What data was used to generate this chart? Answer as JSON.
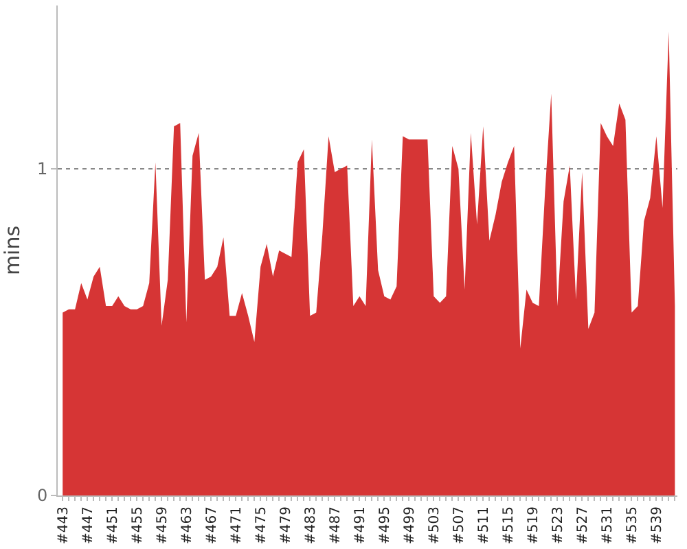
{
  "chart_data": {
    "type": "area",
    "ylabel": "mins",
    "color": "#d63535",
    "categories": [
      "#443",
      null,
      null,
      null,
      "#447",
      null,
      null,
      null,
      "#451",
      null,
      null,
      null,
      "#455",
      null,
      null,
      null,
      "#459",
      null,
      null,
      null,
      "#463",
      null,
      null,
      null,
      "#467",
      null,
      null,
      null,
      "#471",
      null,
      null,
      null,
      "#475",
      null,
      null,
      null,
      "#479",
      null,
      null,
      null,
      "#483",
      null,
      null,
      null,
      "#487",
      null,
      null,
      null,
      "#491",
      null,
      null,
      null,
      "#495",
      null,
      null,
      null,
      "#499",
      null,
      null,
      null,
      "#503",
      null,
      null,
      null,
      "#507",
      null,
      null,
      null,
      "#511",
      null,
      null,
      null,
      "#515",
      null,
      null,
      null,
      "#519",
      null,
      null,
      null,
      "#523",
      null,
      null,
      null,
      "#527",
      null,
      null,
      null,
      "#531",
      null,
      null,
      null,
      "#535",
      null,
      null,
      null,
      "#539",
      null,
      null,
      null
    ],
    "values": [
      0.56,
      0.57,
      0.57,
      0.65,
      0.6,
      0.67,
      0.7,
      0.58,
      0.58,
      0.61,
      0.58,
      0.57,
      0.57,
      0.58,
      0.65,
      1.02,
      0.52,
      0.66,
      1.13,
      1.14,
      0.53,
      1.04,
      1.11,
      0.66,
      0.67,
      0.7,
      0.79,
      0.55,
      0.55,
      0.62,
      0.55,
      0.47,
      0.7,
      0.77,
      0.67,
      0.75,
      0.74,
      0.73,
      1.02,
      1.06,
      0.55,
      0.56,
      0.8,
      1.1,
      0.99,
      1.0,
      1.01,
      0.58,
      0.61,
      0.58,
      1.09,
      0.69,
      0.61,
      0.6,
      0.64,
      1.1,
      1.09,
      1.09,
      1.09,
      1.09,
      0.61,
      0.59,
      0.61,
      1.07,
      1.0,
      0.63,
      1.11,
      0.83,
      1.13,
      0.78,
      0.86,
      0.96,
      1.02,
      1.07,
      0.45,
      0.63,
      0.59,
      0.58,
      0.93,
      1.23,
      0.58,
      0.9,
      1.01,
      0.6,
      0.99,
      0.51,
      0.56,
      1.14,
      1.1,
      1.07,
      1.2,
      1.15,
      0.56,
      0.58,
      0.84,
      0.91,
      1.1,
      0.88,
      1.42,
      0.58
    ],
    "ylim": [
      0,
      1.5
    ],
    "yticks": [
      0,
      1
    ],
    "grid": "y"
  }
}
